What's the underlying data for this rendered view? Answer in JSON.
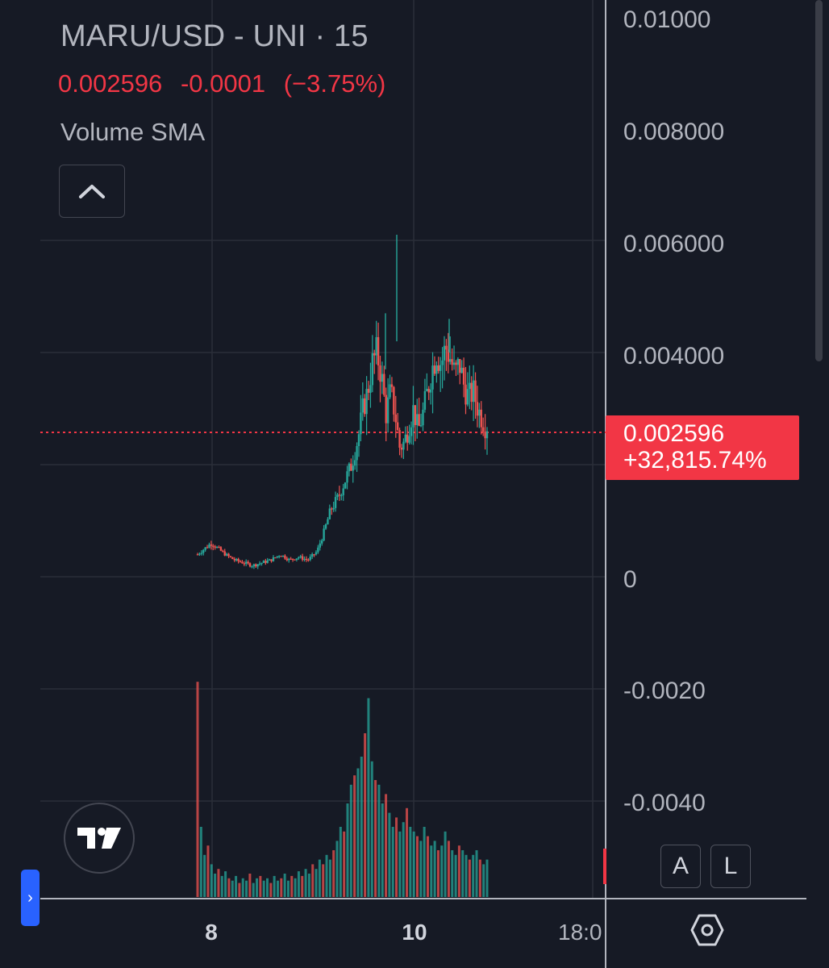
{
  "legend": {
    "title": "MARU/USD - UNI · 15",
    "last_price": "0.002596",
    "change_abs": "-0.0001",
    "change_pct": "(−3.75%)",
    "indicator": "Volume SMA"
  },
  "price_label": {
    "price": "0.002596",
    "change_pct": "+32,815.74%"
  },
  "buttons": {
    "auto": "A",
    "log": "L"
  },
  "icons": {
    "collapse": "chevron-up-icon",
    "logo": "tradingview-logo-icon",
    "settings": "hexagon-settings-icon",
    "side_tab": "chevron-right-icon"
  },
  "colors": {
    "background": "#161a25",
    "grid": "#2a2e39",
    "text": "#b2b5be",
    "up": "#26a69a",
    "down": "#ef5350",
    "price_label": "#f23645",
    "side_tab": "#2962ff"
  },
  "chart_data": {
    "type": "candlestick",
    "symbol": "MARU/USD",
    "exchange": "UNI",
    "interval": "15",
    "y_ticks": [
      "0.01000",
      "0.008000",
      "0.006000",
      "0.004000",
      "0",
      "-0.0020",
      "-0.0040"
    ],
    "x_ticks": [
      "8",
      "10",
      "18:0"
    ],
    "ylim": [
      -0.0058,
      0.0103
    ],
    "last_price": 0.002596,
    "grid": true,
    "series": [
      {
        "name": "price",
        "points": [
          [
            0,
            0.0004
          ],
          [
            3,
            0.0005
          ],
          [
            6,
            0.0006
          ],
          [
            9,
            0.0005
          ],
          [
            12,
            0.0004
          ],
          [
            16,
            0.0003
          ],
          [
            20,
            0.00025
          ],
          [
            24,
            0.0002
          ],
          [
            28,
            0.00025
          ],
          [
            32,
            0.0003
          ],
          [
            36,
            0.0004
          ],
          [
            40,
            0.0003
          ],
          [
            44,
            0.00035
          ],
          [
            48,
            0.0003
          ],
          [
            52,
            0.00045
          ],
          [
            55,
            0.0008
          ],
          [
            58,
            0.0012
          ],
          [
            61,
            0.0014
          ],
          [
            64,
            0.0017
          ],
          [
            67,
            0.002
          ],
          [
            70,
            0.0025
          ],
          [
            72,
            0.003
          ],
          [
            74,
            0.0033
          ],
          [
            76,
            0.0038
          ],
          [
            78,
            0.004
          ],
          [
            80,
            0.0036
          ],
          [
            82,
            0.0029
          ],
          [
            84,
            0.0033
          ],
          [
            86,
            0.0029
          ],
          [
            88,
            0.0023
          ],
          [
            90,
            0.0024
          ],
          [
            92,
            0.0027
          ],
          [
            94,
            0.003
          ],
          [
            96,
            0.0026
          ],
          [
            98,
            0.0029
          ],
          [
            100,
            0.0033
          ],
          [
            102,
            0.0037
          ],
          [
            104,
            0.004
          ],
          [
            106,
            0.0038
          ],
          [
            108,
            0.0041
          ],
          [
            110,
            0.0039
          ],
          [
            112,
            0.0036
          ],
          [
            114,
            0.0038
          ],
          [
            116,
            0.0034
          ],
          [
            118,
            0.0032
          ],
          [
            120,
            0.0033
          ],
          [
            122,
            0.003
          ],
          [
            124,
            0.0028
          ],
          [
            126,
            0.0026
          ]
        ]
      },
      {
        "name": "volume",
        "values": [
          92,
          30,
          18,
          22,
          14,
          10,
          12,
          9,
          11,
          8,
          7,
          9,
          6,
          8,
          7,
          10,
          6,
          8,
          9,
          7,
          8,
          6,
          9,
          7,
          8,
          10,
          7,
          9,
          8,
          11,
          9,
          12,
          10,
          14,
          12,
          16,
          14,
          18,
          16,
          20,
          24,
          30,
          28,
          40,
          48,
          52,
          55,
          60,
          70,
          85,
          58,
          50,
          48,
          40,
          44,
          36,
          30,
          34,
          28,
          32,
          38,
          30,
          28,
          26,
          24,
          30,
          26,
          22,
          24,
          20,
          22,
          28,
          24,
          20,
          18,
          22,
          20,
          18,
          16,
          18,
          20,
          16,
          14,
          16
        ]
      }
    ]
  }
}
